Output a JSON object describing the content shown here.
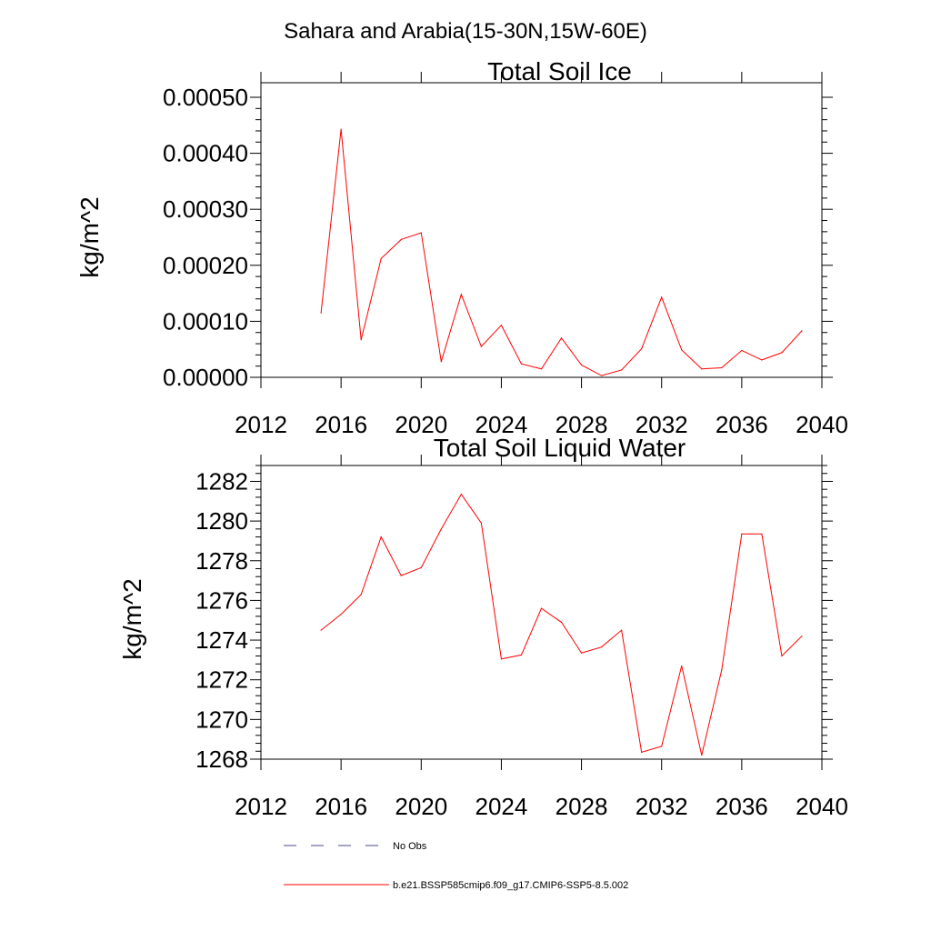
{
  "main_title": "Sahara and Arabia(15-30N,15W-60E)",
  "legend": [
    {
      "label": "No Obs",
      "color": "#4a4a8a",
      "dashed": true
    },
    {
      "label": "b.e21.BSSP585cmip6.f09_g17.CMIP6-SSP5-8.5.002",
      "color": "#ff0000",
      "dashed": false
    }
  ],
  "chart_data": [
    {
      "type": "line",
      "title": "Total Soil Ice",
      "xlabel": "",
      "ylabel": "kg/m^2",
      "xlim": [
        2012,
        2040
      ],
      "ylim": [
        0,
        0.0005
      ],
      "xticks": [
        2012,
        2016,
        2020,
        2024,
        2028,
        2032,
        2036,
        2040
      ],
      "xtick_labels": [
        "2012",
        "2016",
        "2020",
        "2024",
        "2028",
        "2032",
        "2036",
        "2040"
      ],
      "yticks": [
        0,
        0.0001,
        0.0002,
        0.0003,
        0.0004,
        0.0005
      ],
      "ytick_labels": [
        "0.00000",
        "0.00010",
        "0.00020",
        "0.00030",
        "0.00040",
        "0.00050"
      ],
      "grid": false,
      "series": [
        {
          "color": "#ff0000",
          "x": [
            2015,
            2016,
            2017,
            2018,
            2019,
            2020,
            2021,
            2022,
            2023,
            2024,
            2025,
            2026,
            2027,
            2028,
            2029,
            2030,
            2031,
            2032,
            2033,
            2034,
            2035,
            2036,
            2037,
            2038,
            2039
          ],
          "y": [
            0.000115,
            0.000443,
            6.7e-05,
            0.000212,
            0.000246,
            0.000258,
            2.8e-05,
            0.000148,
            5.5e-05,
            9.3e-05,
            2.4e-05,
            1.5e-05,
            7e-05,
            2.2e-05,
            3e-06,
            1.3e-05,
            5.1e-05,
            0.000143,
            4.9e-05,
            1.5e-05,
            1.7e-05,
            4.8e-05,
            3.1e-05,
            4.4e-05,
            8.3e-05
          ]
        }
      ]
    },
    {
      "type": "line",
      "title": "Total Soil Liquid Water",
      "xlabel": "",
      "ylabel": "kg/m^2",
      "xlim": [
        2012,
        2040
      ],
      "ylim": [
        1268,
        1282.8
      ],
      "xticks": [
        2012,
        2016,
        2020,
        2024,
        2028,
        2032,
        2036,
        2040
      ],
      "xtick_labels": [
        "2012",
        "2016",
        "2020",
        "2024",
        "2028",
        "2032",
        "2036",
        "2040"
      ],
      "yticks": [
        1268,
        1270,
        1272,
        1274,
        1276,
        1278,
        1280,
        1282
      ],
      "ytick_labels": [
        "1268",
        "1270",
        "1272",
        "1274",
        "1276",
        "1278",
        "1280",
        "1282"
      ],
      "grid": false,
      "series": [
        {
          "color": "#ff0000",
          "x": [
            2015,
            2016,
            2017,
            2018,
            2019,
            2020,
            2021,
            2022,
            2023,
            2024,
            2025,
            2026,
            2027,
            2028,
            2029,
            2030,
            2031,
            2032,
            2033,
            2034,
            2035,
            2036,
            2037,
            2038,
            2039
          ],
          "y": [
            1274.5,
            1275.3,
            1276.3,
            1279.2,
            1277.25,
            1277.65,
            1279.6,
            1281.35,
            1279.9,
            1273.05,
            1273.25,
            1275.6,
            1274.9,
            1273.35,
            1273.65,
            1274.5,
            1268.35,
            1268.65,
            1272.7,
            1268.2,
            1272.5,
            1279.35,
            1279.35,
            1273.2,
            1274.2
          ]
        }
      ]
    }
  ]
}
